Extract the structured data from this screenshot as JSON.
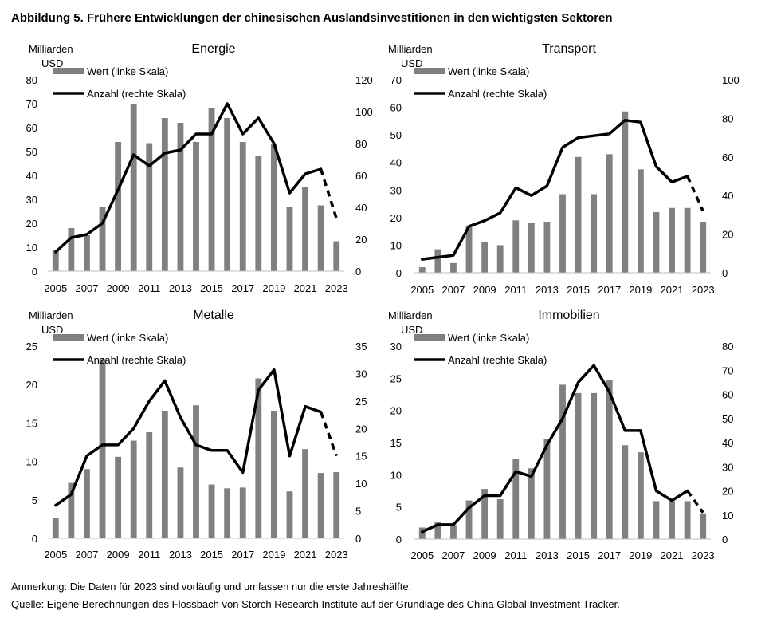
{
  "figure": {
    "title": "Abbildung 5. Frühere Entwicklungen der chinesischen Auslandsinvestitionen in den wichtigsten Sektoren",
    "note": "Anmerkung: Die Daten für 2023 sind vorläufig und umfassen nur die erste Jahreshälfte.",
    "source": "Quelle: Eigene Berechnungen des Flossbach von Storch Research Institute auf der Grundlage des China Global Investment Tracker."
  },
  "colors": {
    "bars": "#808080",
    "line": "#000000"
  },
  "chart_data": [
    {
      "type": "bar",
      "title": "Energie",
      "ylabel": "Milliarden USD",
      "x": [
        2005,
        2006,
        2007,
        2008,
        2009,
        2010,
        2011,
        2012,
        2013,
        2014,
        2015,
        2016,
        2017,
        2018,
        2019,
        2020,
        2021,
        2022,
        2023
      ],
      "x_tick_labels": [
        "2005",
        "2007",
        "2009",
        "2011",
        "2013",
        "2015",
        "2017",
        "2019",
        "2021",
        "2023"
      ],
      "ylim_left": [
        0,
        80
      ],
      "ylim_right": [
        0,
        120
      ],
      "left_ticks": [
        "0",
        "10",
        "20",
        "30",
        "40",
        "50",
        "60",
        "70",
        "80"
      ],
      "right_ticks": [
        "0",
        "20",
        "40",
        "60",
        "80",
        "100",
        "120"
      ],
      "legend": [
        "Wert (linke Skala)",
        "Anzahl (rechte Skala)"
      ],
      "series": [
        {
          "name": "Wert (linke Skala)",
          "type": "bar",
          "axis": "left",
          "values": [
            9,
            18,
            15,
            27,
            54,
            70,
            53.5,
            64,
            62,
            54,
            68,
            64,
            54,
            48,
            53,
            27,
            35,
            27.5,
            12.5
          ]
        },
        {
          "name": "Anzahl (rechte Skala)",
          "type": "line",
          "axis": "right",
          "dashed_from": 2022,
          "values": [
            12,
            21,
            23,
            30,
            51,
            73,
            66,
            74,
            76,
            86,
            86,
            105,
            86,
            96,
            80,
            49,
            61,
            64,
            33
          ]
        }
      ]
    },
    {
      "type": "bar",
      "title": "Transport",
      "ylabel": "Milliarden USD",
      "x": [
        2005,
        2006,
        2007,
        2008,
        2009,
        2010,
        2011,
        2012,
        2013,
        2014,
        2015,
        2016,
        2017,
        2018,
        2019,
        2020,
        2021,
        2022,
        2023
      ],
      "x_tick_labels": [
        "2005",
        "2007",
        "2009",
        "2011",
        "2013",
        "2015",
        "2017",
        "2019",
        "2021",
        "2023"
      ],
      "ylim_left": [
        0,
        70
      ],
      "ylim_right": [
        0,
        100
      ],
      "left_ticks": [
        "0",
        "10",
        "20",
        "30",
        "40",
        "50",
        "60",
        "70"
      ],
      "right_ticks": [
        "0",
        "20",
        "40",
        "60",
        "80",
        "100"
      ],
      "legend": [
        "Wert (linke Skala)",
        "Anzahl (rechte Skala)"
      ],
      "series": [
        {
          "name": "Wert (linke Skala)",
          "type": "bar",
          "axis": "left",
          "values": [
            2,
            8.5,
            3.5,
            17,
            11,
            10,
            19,
            18,
            18.5,
            28.5,
            42,
            28.5,
            43,
            58.5,
            37.5,
            22,
            23.5,
            23.5,
            18.5
          ]
        },
        {
          "name": "Anzahl (rechte Skala)",
          "type": "line",
          "axis": "right",
          "dashed_from": 2022,
          "values": [
            7,
            8,
            9,
            24,
            27,
            31,
            44,
            40,
            45,
            65,
            70,
            71,
            72,
            79,
            78,
            55,
            47,
            50,
            32
          ]
        }
      ]
    },
    {
      "type": "bar",
      "title": "Metalle",
      "ylabel": "Milliarden USD",
      "x": [
        2005,
        2006,
        2007,
        2008,
        2009,
        2010,
        2011,
        2012,
        2013,
        2014,
        2015,
        2016,
        2017,
        2018,
        2019,
        2020,
        2021,
        2022,
        2023
      ],
      "x_tick_labels": [
        "2005",
        "2007",
        "2009",
        "2011",
        "2013",
        "2015",
        "2017",
        "2019",
        "2021",
        "2023"
      ],
      "ylim_left": [
        0,
        25
      ],
      "ylim_right": [
        0,
        35
      ],
      "left_ticks": [
        "0",
        "5",
        "10",
        "15",
        "20",
        "25"
      ],
      "right_ticks": [
        "0",
        "5",
        "10",
        "15",
        "20",
        "25",
        "30",
        "35"
      ],
      "legend": [
        "Wert (linke Skala)",
        "Anzahl (rechte Skala)"
      ],
      "series": [
        {
          "name": "Wert (linke Skala)",
          "type": "bar",
          "axis": "left",
          "values": [
            2.6,
            7.2,
            9,
            23.3,
            10.6,
            12.7,
            13.8,
            16.6,
            9.2,
            17.3,
            7,
            6.5,
            6.6,
            20.8,
            16.6,
            6.1,
            11.6,
            8.5,
            8.6
          ]
        },
        {
          "name": "Anzahl (rechte Skala)",
          "type": "line",
          "axis": "right",
          "dashed_from": 2022,
          "values": [
            6,
            8,
            15,
            17,
            17,
            20,
            25,
            28.7,
            22,
            17,
            16,
            16,
            12,
            27,
            30.7,
            15,
            24,
            23,
            15
          ]
        }
      ]
    },
    {
      "type": "bar",
      "title": "Immobilien",
      "ylabel": "Milliarden USD",
      "x": [
        2005,
        2006,
        2007,
        2008,
        2009,
        2010,
        2011,
        2012,
        2013,
        2014,
        2015,
        2016,
        2017,
        2018,
        2019,
        2020,
        2021,
        2022,
        2023
      ],
      "x_tick_labels": [
        "2005",
        "2007",
        "2009",
        "2011",
        "2013",
        "2015",
        "2017",
        "2019",
        "2021",
        "2023"
      ],
      "ylim_left": [
        0,
        30
      ],
      "ylim_right": [
        0,
        80
      ],
      "left_ticks": [
        "0",
        "5",
        "10",
        "15",
        "20",
        "25",
        "30"
      ],
      "right_ticks": [
        "0",
        "10",
        "20",
        "30",
        "40",
        "50",
        "60",
        "70",
        "80"
      ],
      "legend": [
        "Wert (linke Skala)",
        "Anzahl (rechte Skala)"
      ],
      "series": [
        {
          "name": "Wert (linke Skala)",
          "type": "bar",
          "axis": "left",
          "values": [
            1.8,
            2.7,
            2.2,
            6,
            7.8,
            6.2,
            12.4,
            11,
            15.6,
            24,
            22.7,
            22.7,
            24.7,
            14.6,
            13.5,
            5.9,
            5.9,
            5.9,
            4
          ]
        },
        {
          "name": "Anzahl (rechte Skala)",
          "type": "line",
          "axis": "right",
          "dashed_from": 2022,
          "values": [
            3,
            6,
            6,
            13,
            18,
            18,
            28,
            26,
            39,
            50,
            65,
            72,
            61,
            45,
            45,
            20,
            16,
            20,
            11
          ]
        }
      ]
    }
  ]
}
